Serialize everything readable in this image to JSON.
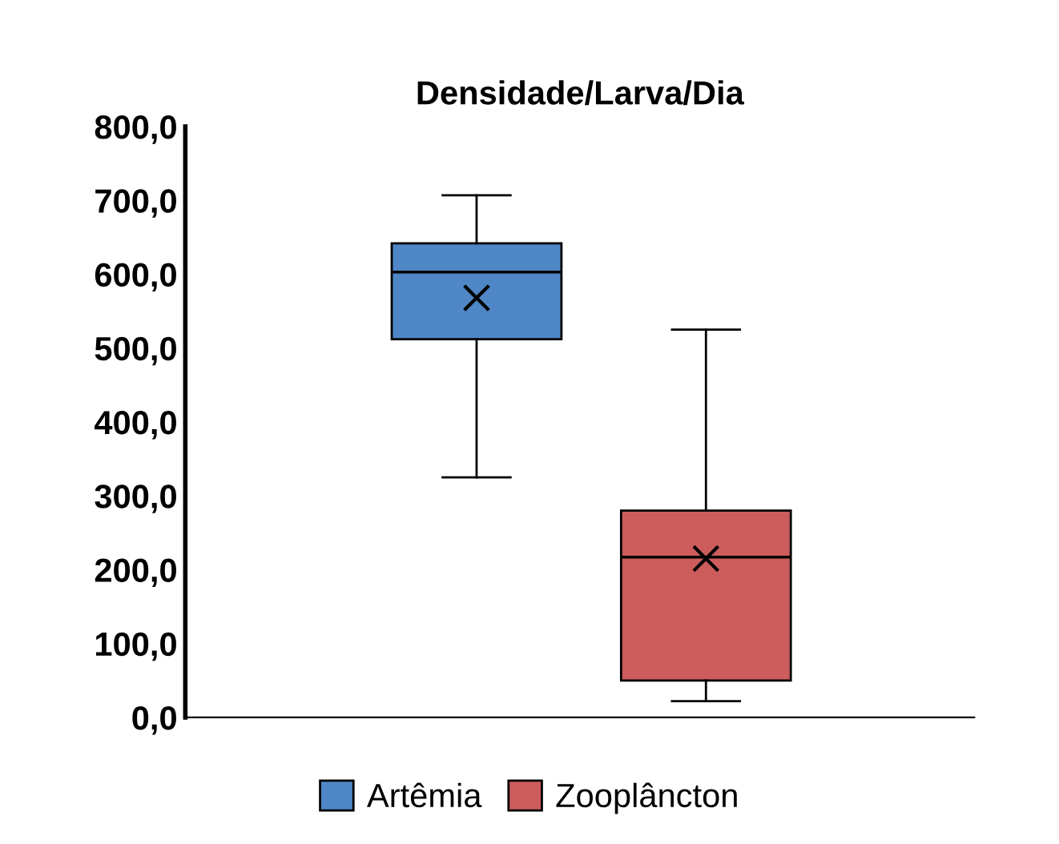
{
  "chart_data": {
    "type": "box",
    "title": "Densidade/Larva/Dia",
    "categories": [
      null,
      null
    ],
    "series": [
      {
        "name": "Artêmia",
        "color": "#4f86c6",
        "boxes": [
          {
            "low": 325,
            "q1": 512,
            "median": 603,
            "q3": 642,
            "high": 707,
            "mean": 568
          },
          null
        ]
      },
      {
        "name": "Zooplâncton",
        "color": "#cd5c5c",
        "boxes": [
          null,
          {
            "low": 22,
            "q1": 50,
            "median": 217,
            "q3": 280,
            "high": 525,
            "mean": 215
          }
        ]
      }
    ],
    "ylim": [
      0,
      800
    ],
    "yticks": [
      {
        "value": 0,
        "label": "0,0"
      },
      {
        "value": 100,
        "label": "100,0"
      },
      {
        "value": 200,
        "label": "200,0"
      },
      {
        "value": 300,
        "label": "300,0"
      },
      {
        "value": 400,
        "label": "400,0"
      },
      {
        "value": 500,
        "label": "500,0"
      },
      {
        "value": 600,
        "label": "600,0"
      },
      {
        "value": 700,
        "label": "700,0"
      },
      {
        "value": 800,
        "label": "800,0"
      }
    ],
    "grid": false,
    "legend": "bottom"
  }
}
